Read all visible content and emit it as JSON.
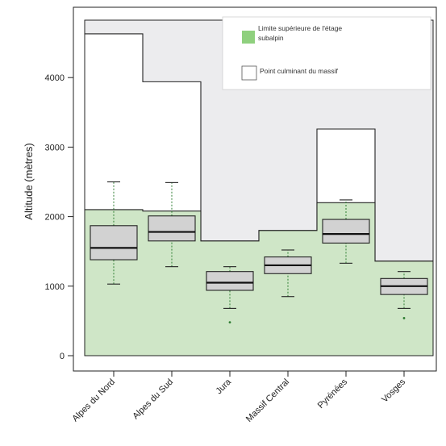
{
  "colors": {
    "background_band": "#ececee",
    "summit_fill": "#ffffff",
    "subalpine_fill": "#cfe6c7",
    "legend_green": "#8fd07e",
    "box_fill": "#d2d2d2",
    "whisker_color": "#2e7d32",
    "outline": "#222222"
  },
  "chart_data": {
    "type": "box",
    "ylabel": "Altitude  (mètres)",
    "ylim": [
      0,
      4800
    ],
    "yticks": [
      0,
      1000,
      2000,
      3000,
      4000
    ],
    "categories": [
      "Alpes du Nord",
      "Alpes du Sud",
      "Jura",
      "Massif Central",
      "Pyrénées",
      "Vosges"
    ],
    "series": [
      {
        "name": "Limite supérieure de l'étage subalpin",
        "values": [
          2100,
          2080,
          1650,
          1800,
          2200,
          1360
        ]
      },
      {
        "name": "Point culminant du massif",
        "values": [
          4630,
          3940,
          1650,
          1800,
          3260,
          1360
        ]
      }
    ],
    "boxes": [
      {
        "category": "Alpes du Nord",
        "min": 1030,
        "q1": 1380,
        "median": 1550,
        "q3": 1870,
        "max": 2500,
        "outliers": []
      },
      {
        "category": "Alpes du Sud",
        "min": 1280,
        "q1": 1650,
        "median": 1780,
        "q3": 2010,
        "max": 2490,
        "outliers": []
      },
      {
        "category": "Jura",
        "min": 680,
        "q1": 940,
        "median": 1050,
        "q3": 1210,
        "max": 1280,
        "outliers": [
          480
        ]
      },
      {
        "category": "Massif Central",
        "min": 850,
        "q1": 1180,
        "median": 1300,
        "q3": 1420,
        "max": 1520,
        "outliers": []
      },
      {
        "category": "Pyrénées",
        "min": 1330,
        "q1": 1620,
        "median": 1750,
        "q3": 1960,
        "max": 2240,
        "outliers": []
      },
      {
        "category": "Vosges",
        "min": 680,
        "q1": 880,
        "median": 1000,
        "q3": 1110,
        "max": 1210,
        "outliers": [
          540
        ]
      }
    ],
    "legend": {
      "position": "top-right",
      "items": [
        {
          "label_line1": "Limite supérieure de l'étage",
          "label_line2": "subalpin",
          "swatch": "green"
        },
        {
          "label_line1": "Point culminant du massif",
          "label_line2": "",
          "swatch": "white"
        }
      ]
    }
  }
}
